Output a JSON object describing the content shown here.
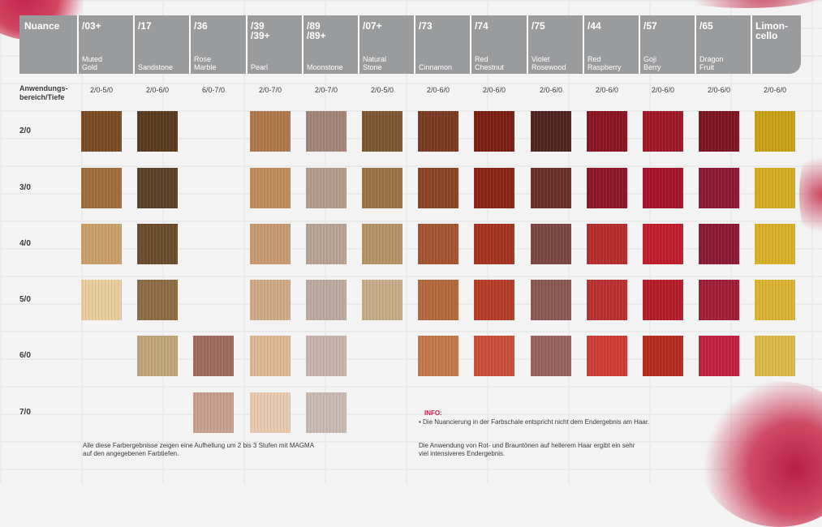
{
  "header_label": "Nuance",
  "columns": [
    {
      "code": "/03+",
      "name": "Muted\nGold",
      "range": "2/0-5/0"
    },
    {
      "code": "/17",
      "name": "Sandstone",
      "range": "2/0-6/0"
    },
    {
      "code": "/36",
      "name": "Rose\nMarble",
      "range": "6/0-7/0"
    },
    {
      "code": "/39\n/39+",
      "name": "Pearl",
      "range": "2/0-7/0"
    },
    {
      "code": "/89\n/89+",
      "name": "Moonstone",
      "range": "2/0-7/0"
    },
    {
      "code": "/07+",
      "name": "Natural\nStone",
      "range": "2/0-5/0"
    },
    {
      "code": "/73",
      "name": "Cinnamon",
      "range": "2/0-6/0"
    },
    {
      "code": "/74",
      "name": "Red\nChestnut",
      "range": "2/0-6/0"
    },
    {
      "code": "/75",
      "name": "Violet\nRosewood",
      "range": "2/0-6/0"
    },
    {
      "code": "/44",
      "name": "Red\nRaspberry",
      "range": "2/0-6/0"
    },
    {
      "code": "/57",
      "name": "Goji\nBerry",
      "range": "2/0-6/0"
    },
    {
      "code": "/65",
      "name": "Dragon\nFruit",
      "range": "2/0-6/0"
    },
    {
      "code": "Limon-\ncello",
      "name": "",
      "range": "2/0-6/0"
    }
  ],
  "range_label": "Anwendungs-\nbereich/Tiefe",
  "rows": [
    "2/0",
    "3/0",
    "4/0",
    "5/0",
    "6/0",
    "7/0"
  ],
  "swatch_colors": [
    [
      "#7a4a22",
      "#5a3a1e",
      null,
      "#b0784a",
      "#a48478",
      "#7c5630",
      "#7a3a22",
      "#7a1e12",
      "#4e2420",
      "#8a1420",
      "#a01826",
      "#7e1422",
      "#c8a016"
    ],
    [
      "#a06c3c",
      "#5c4026",
      null,
      "#c08c5c",
      "#b49a8a",
      "#9c7448",
      "#8a4424",
      "#8c2416",
      "#6a3028",
      "#8c1424",
      "#a8142c",
      "#8c1834",
      "#d4ac20"
    ],
    [
      "#caa06a",
      "#6a4c2c",
      null,
      "#c89a72",
      "#b8a294",
      "#b49466",
      "#a45430",
      "#a43420",
      "#7a4642",
      "#b42c2c",
      "#c01c2c",
      "#8a1a34",
      "#d8b028"
    ],
    [
      "#e8cc9c",
      "#8c6c44",
      null,
      "#d0aa88",
      "#bcaaa0",
      "#c8ac88",
      "#b4683c",
      "#b43c28",
      "#8a5852",
      "#b83030",
      "#b41c28",
      "#a01e38",
      "#dcb434"
    ],
    [
      null,
      "#c0a478",
      "#a06a5e",
      "#dcb894",
      "#c8b4ac",
      null,
      "#c4784a",
      "#c84c36",
      "#9a625e",
      "#cc3c34",
      "#b42c1e",
      "#c02040",
      "#dcb848"
    ],
    [
      null,
      null,
      "#c8a090",
      "#e8cab0",
      "#c8bab2",
      null,
      null,
      null,
      null,
      null,
      null,
      null,
      null
    ]
  ],
  "note_left": "Alle diese Farbergebnisse zeigen eine Aufhellung um 2 bis 3 Stufen mit MAGMA\nauf den angegebenen Farbtiefen.",
  "info_title": "INFO:",
  "info_text": "• Die Nuancierung in der Farbschale entspricht nicht dem Endergebnis am Haar.",
  "note_right": "Die Anwendung von Rot- und Brauntönen auf hellerem Haar ergibt ein sehr\nviel intensiveres Endergebnis."
}
